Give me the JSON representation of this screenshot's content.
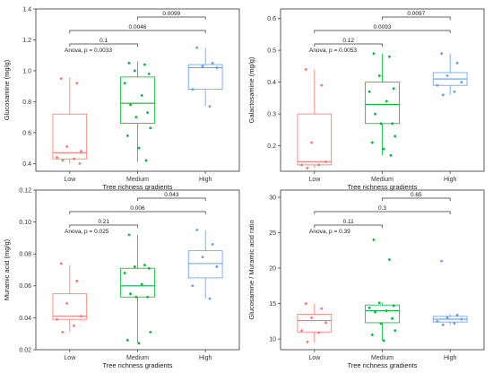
{
  "chart_data": [
    {
      "type": "box",
      "panel": "top-left",
      "categories": [
        "Low",
        "Medium",
        "High"
      ],
      "xlabel": "Tree richness gradients",
      "ylabel": "Glucosamine (mg/g)",
      "ylim": [
        0.35,
        1.4
      ],
      "yticks": [
        0.4,
        0.6,
        0.8,
        1.0,
        1.2,
        1.4
      ],
      "ytick_labels": [
        "0.4",
        "0.6",
        "0.8",
        "1.0",
        "1.2",
        "1.4"
      ],
      "colors": [
        "#f8766d",
        "#00ba38",
        "#619cff"
      ],
      "boxes": [
        {
          "q1": 0.43,
          "median": 0.47,
          "q3": 0.72,
          "whisker_low": 0.4,
          "whisker_high": 0.96
        },
        {
          "q1": 0.66,
          "median": 0.79,
          "q3": 0.96,
          "whisker_low": 0.41,
          "whisker_high": 1.06
        },
        {
          "q1": 0.88,
          "median": 1.02,
          "q3": 1.04,
          "whisker_low": 0.77,
          "whisker_high": 1.15
        }
      ],
      "points": [
        [
          0.95,
          0.92,
          0.51,
          0.48,
          0.44,
          0.43,
          0.42,
          0.4
        ],
        [
          1.05,
          1.04,
          1.0,
          0.98,
          0.92,
          0.84,
          0.78,
          0.73,
          0.7,
          0.63,
          0.58,
          0.5,
          0.42
        ],
        [
          1.15,
          1.05,
          1.03,
          1.02,
          0.88,
          0.77
        ]
      ],
      "comparisons": [
        {
          "from": 2,
          "to": 3,
          "label": "0.0099"
        },
        {
          "from": 1,
          "to": 3,
          "label": "0.0046"
        },
        {
          "from": 1,
          "to": 2,
          "label": "0.1"
        }
      ],
      "anova": "Anova, p = 0.0033"
    },
    {
      "type": "box",
      "panel": "top-right",
      "categories": [
        "Low",
        "Medium",
        "High"
      ],
      "xlabel": "Tree richness gradients",
      "ylabel": "Galactosamine (mg/g)",
      "ylim": [
        0.12,
        0.63
      ],
      "yticks": [
        0.2,
        0.3,
        0.4,
        0.5,
        0.6
      ],
      "ytick_labels": [
        "0.2",
        "0.3",
        "0.4",
        "0.5",
        "0.6"
      ],
      "colors": [
        "#f8766d",
        "#00ba38",
        "#619cff"
      ],
      "boxes": [
        {
          "q1": 0.14,
          "median": 0.15,
          "q3": 0.3,
          "whisker_low": 0.13,
          "whisker_high": 0.44
        },
        {
          "q1": 0.27,
          "median": 0.33,
          "q3": 0.4,
          "whisker_low": 0.17,
          "whisker_high": 0.49
        },
        {
          "q1": 0.39,
          "median": 0.41,
          "q3": 0.43,
          "whisker_low": 0.36,
          "whisker_high": 0.49
        }
      ],
      "points": [
        [
          0.44,
          0.39,
          0.21,
          0.15,
          0.14,
          0.14,
          0.13
        ],
        [
          0.49,
          0.48,
          0.42,
          0.38,
          0.37,
          0.34,
          0.3,
          0.27,
          0.27,
          0.23,
          0.21,
          0.19,
          0.17
        ],
        [
          0.49,
          0.46,
          0.42,
          0.4,
          0.39,
          0.37,
          0.36
        ]
      ],
      "comparisons": [
        {
          "from": 2,
          "to": 3,
          "label": "0.0097"
        },
        {
          "from": 1,
          "to": 3,
          "label": "0.0093"
        },
        {
          "from": 1,
          "to": 2,
          "label": "0.12"
        }
      ],
      "anova": "Anova, p = 0.0053"
    },
    {
      "type": "box",
      "panel": "bottom-left",
      "categories": [
        "Low",
        "Medium",
        "High"
      ],
      "xlabel": "Tree richness gradients",
      "ylabel": "Muramic acid (mg/g)",
      "ylim": [
        0.02,
        0.12
      ],
      "yticks": [
        0.02,
        0.04,
        0.06,
        0.08,
        0.1,
        0.12
      ],
      "ytick_labels": [
        "0.02",
        "0.04",
        "0.06",
        "0.08",
        "0.10",
        "0.12"
      ],
      "colors": [
        "#f8766d",
        "#00ba38",
        "#619cff"
      ],
      "boxes": [
        {
          "q1": 0.039,
          "median": 0.041,
          "q3": 0.055,
          "whisker_low": 0.031,
          "whisker_high": 0.073
        },
        {
          "q1": 0.053,
          "median": 0.06,
          "q3": 0.071,
          "whisker_low": 0.024,
          "whisker_high": 0.092
        },
        {
          "q1": 0.065,
          "median": 0.074,
          "q3": 0.082,
          "whisker_low": 0.052,
          "whisker_high": 0.095
        }
      ],
      "points": [
        [
          0.074,
          0.063,
          0.049,
          0.041,
          0.039,
          0.035,
          0.031
        ],
        [
          0.092,
          0.073,
          0.072,
          0.071,
          0.068,
          0.061,
          0.055,
          0.053,
          0.053,
          0.031,
          0.026,
          0.024
        ],
        [
          0.095,
          0.086,
          0.078,
          0.072,
          0.06,
          0.052
        ]
      ],
      "comparisons": [
        {
          "from": 2,
          "to": 3,
          "label": "0.043"
        },
        {
          "from": 1,
          "to": 3,
          "label": "0.006"
        },
        {
          "from": 1,
          "to": 2,
          "label": "0.21"
        }
      ],
      "anova": "Anova, p = 0.025"
    },
    {
      "type": "box",
      "panel": "bottom-right",
      "categories": [
        "Low",
        "Medium",
        "High"
      ],
      "xlabel": "Tree richness gradients",
      "ylabel": "Glucosamine / Muramic acid ratio",
      "ylim": [
        8.5,
        31
      ],
      "yticks": [
        10,
        15,
        20,
        25,
        30
      ],
      "ytick_labels": [
        "10",
        "15",
        "20",
        "25",
        "30"
      ],
      "colors": [
        "#f8766d",
        "#00ba38",
        "#619cff"
      ],
      "boxes": [
        {
          "q1": 11.0,
          "median": 12.6,
          "q3": 13.5,
          "whisker_low": 9.5,
          "whisker_high": 15.0
        },
        {
          "q1": 12.3,
          "median": 14.0,
          "q3": 14.8,
          "whisker_low": 9.8,
          "whisker_high": 15.1
        },
        {
          "q1": 12.4,
          "median": 12.8,
          "q3": 13.2,
          "whisker_low": 12.0,
          "whisker_high": 13.5
        }
      ],
      "points": [
        [
          15.0,
          14.3,
          13.0,
          12.3,
          11.2,
          10.9,
          9.6
        ],
        [
          24.0,
          21.2,
          15.1,
          14.7,
          14.4,
          14.0,
          13.8,
          12.9,
          12.2,
          11.2,
          10.6,
          9.8
        ],
        [
          21.0,
          13.4,
          13.0,
          12.8,
          12.5,
          12.2,
          12.0
        ]
      ],
      "comparisons": [
        {
          "from": 2,
          "to": 3,
          "label": "0.65"
        },
        {
          "from": 1,
          "to": 3,
          "label": "0.3"
        },
        {
          "from": 1,
          "to": 2,
          "label": "0.11"
        }
      ],
      "anova": "Anova, p = 0.39"
    }
  ]
}
